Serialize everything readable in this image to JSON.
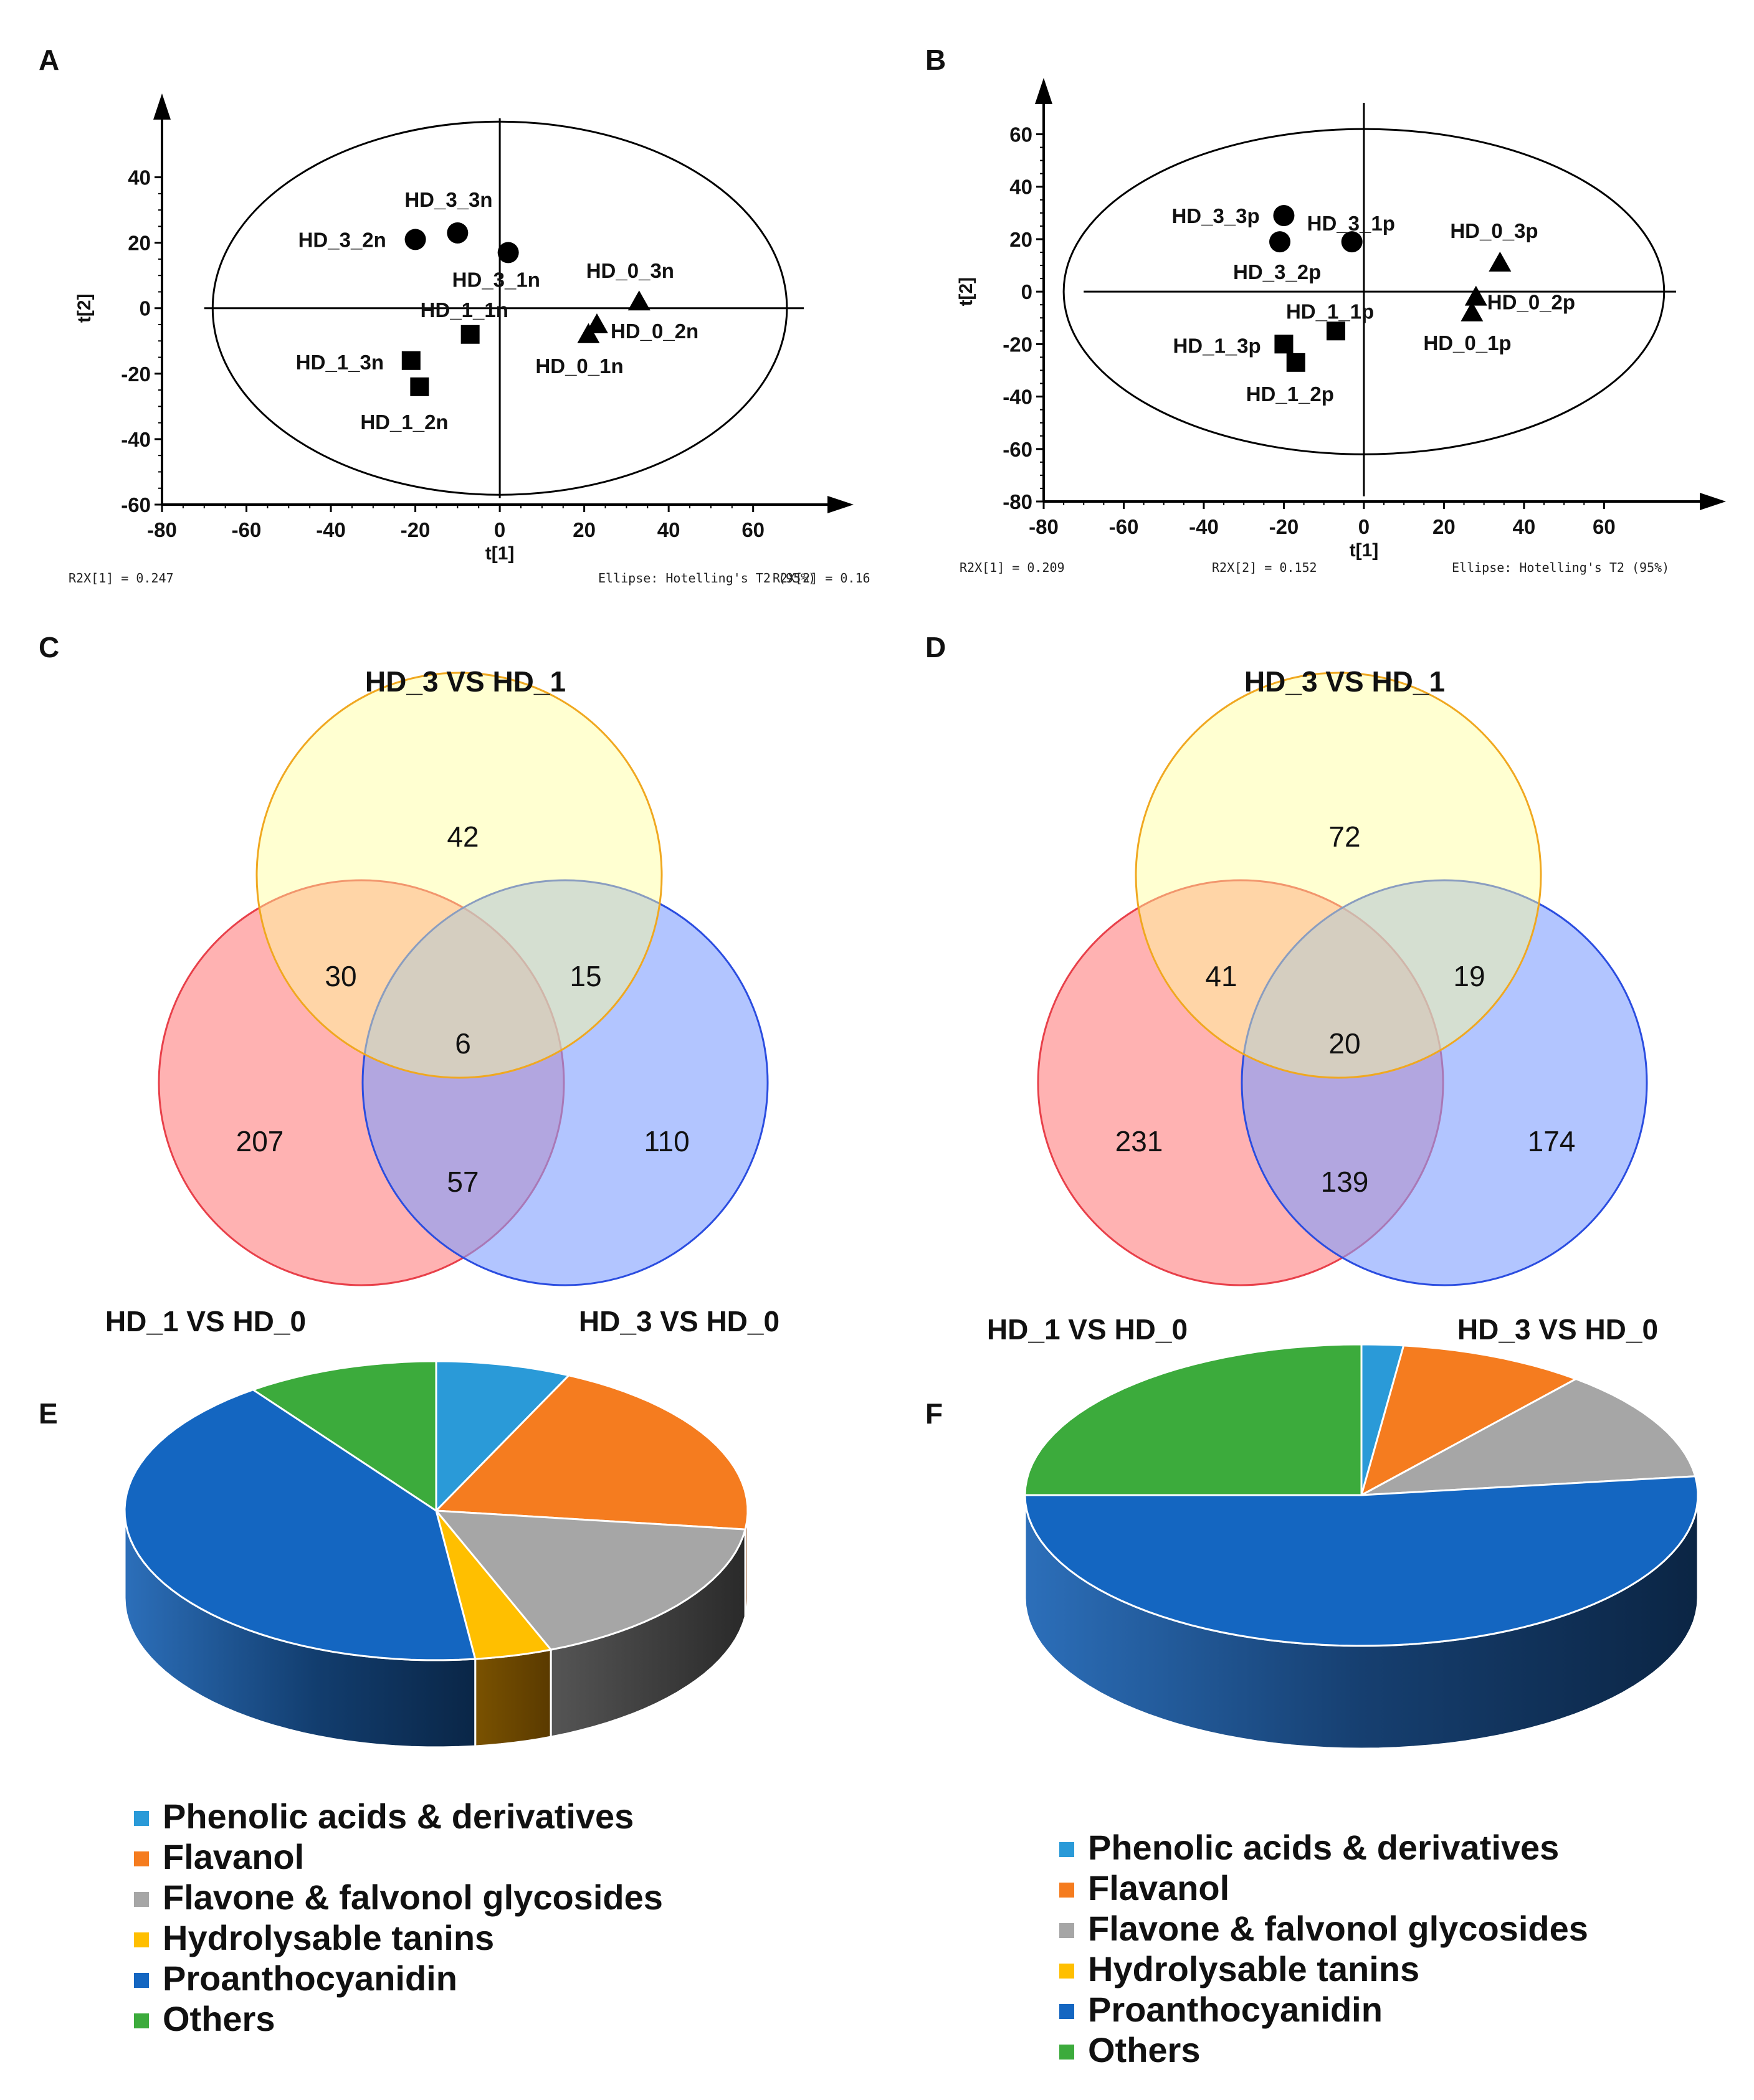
{
  "panel_labels": {
    "A": "A",
    "B": "B",
    "C": "C",
    "D": "D",
    "E": "E",
    "F": "F"
  },
  "chart_data": [
    {
      "panel": "A",
      "type": "scatter",
      "xlabel": "t[1]",
      "ylabel": "t[2]",
      "xticks": [
        -80,
        -60,
        -40,
        -20,
        0,
        20,
        40,
        60
      ],
      "yticks": [
        -60,
        -40,
        -20,
        0,
        20,
        40
      ],
      "xlim": [
        -80,
        72
      ],
      "ylim": [
        -60,
        58
      ],
      "ellipse": {
        "cx": 0,
        "cy": 0,
        "rx": 68,
        "ry": 57
      },
      "points": [
        {
          "label": "HD_3_3n",
          "x": -10,
          "y": 23,
          "shape": "circle"
        },
        {
          "label": "HD_3_2n",
          "x": -20,
          "y": 21,
          "shape": "circle"
        },
        {
          "label": "HD_3_1n",
          "x": 2,
          "y": 17,
          "shape": "circle"
        },
        {
          "label": "HD_0_3n",
          "x": 33,
          "y": 2,
          "shape": "triangle"
        },
        {
          "label": "HD_0_2n",
          "x": 23,
          "y": -5,
          "shape": "triangle"
        },
        {
          "label": "HD_0_1n",
          "x": 21,
          "y": -8,
          "shape": "triangle"
        },
        {
          "label": "HD_1_1n",
          "x": -7,
          "y": -8,
          "shape": "square"
        },
        {
          "label": "HD_1_3n",
          "x": -21,
          "y": -16,
          "shape": "square"
        },
        {
          "label": "HD_1_2n",
          "x": -19,
          "y": -24,
          "shape": "square"
        }
      ],
      "footer": {
        "r2x1": "R2X[1] = 0.247",
        "r2x2": "R2X[2] = 0.16",
        "ellipse": "Ellipse: Hotelling's T2 (95%)"
      }
    },
    {
      "panel": "B",
      "type": "scatter",
      "xlabel": "t[1]",
      "ylabel": "t[2]",
      "xticks": [
        -80,
        -60,
        -40,
        -20,
        0,
        20,
        40,
        60
      ],
      "yticks": [
        -80,
        -60,
        -40,
        -20,
        0,
        20,
        40,
        60
      ],
      "xlim": [
        -80,
        78
      ],
      "ylim": [
        -80,
        72
      ],
      "ellipse": {
        "cx": 0,
        "cy": 0,
        "rx": 75,
        "ry": 62
      },
      "points": [
        {
          "label": "HD_3_3p",
          "x": -20,
          "y": 29,
          "shape": "circle"
        },
        {
          "label": "HD_3_2p",
          "x": -21,
          "y": 19,
          "shape": "circle"
        },
        {
          "label": "HD_3_1p",
          "x": -3,
          "y": 19,
          "shape": "circle"
        },
        {
          "label": "HD_0_3p",
          "x": 34,
          "y": 11,
          "shape": "triangle"
        },
        {
          "label": "HD_0_2p",
          "x": 28,
          "y": -2,
          "shape": "triangle"
        },
        {
          "label": "HD_0_1p",
          "x": 27,
          "y": -8,
          "shape": "triangle"
        },
        {
          "label": "HD_1_1p",
          "x": -7,
          "y": -15,
          "shape": "square"
        },
        {
          "label": "HD_1_3p",
          "x": -20,
          "y": -20,
          "shape": "square"
        },
        {
          "label": "HD_1_2p",
          "x": -17,
          "y": -27,
          "shape": "square"
        }
      ],
      "footer": {
        "r2x1": "R2X[1] = 0.209",
        "r2x2": "R2X[2] = 0.152",
        "ellipse": "Ellipse: Hotelling's T2 (95%)"
      }
    },
    {
      "panel": "C",
      "type": "venn",
      "sets": [
        "HD_3 VS HD_1",
        "HD_1 VS HD_0",
        "HD_3 VS HD_0"
      ],
      "regions": {
        "only_top": 42,
        "only_left": 207,
        "only_right": 110,
        "top_left": 30,
        "top_right": 15,
        "left_right": 57,
        "all": 6
      },
      "colors": {
        "top": "#ffff99",
        "left": "#ff7f7f",
        "right": "#7f9fff"
      }
    },
    {
      "panel": "D",
      "type": "venn",
      "sets": [
        "HD_3 VS HD_1",
        "HD_1 VS HD_0",
        "HD_3 VS HD_0"
      ],
      "regions": {
        "only_top": 72,
        "only_left": 231,
        "only_right": 174,
        "top_left": 41,
        "top_right": 19,
        "left_right": 139,
        "all": 20
      },
      "colors": {
        "top": "#ffff99",
        "left": "#ff7f7f",
        "right": "#7f9fff"
      }
    },
    {
      "panel": "E",
      "type": "pie",
      "categories": [
        "Phenolic acids & derivatives",
        "Flavanol",
        "Flavone & falvonol glycosides",
        "Hydrolysable tanins",
        "Proanthocyanidin",
        "Others"
      ],
      "values": [
        7,
        20,
        17,
        4,
        42,
        10
      ]
    },
    {
      "panel": "F",
      "type": "pie",
      "categories": [
        "Phenolic acids & derivatives",
        "Flavanol",
        "Flavone & falvonol glycosides",
        "Hydrolysable tanins",
        "Proanthocyanidin",
        "Others"
      ],
      "values": [
        2,
        9,
        12,
        0,
        52,
        25
      ]
    }
  ],
  "legend": {
    "items": [
      {
        "label": "Phenolic acids & derivatives",
        "color": "#2a9ad8"
      },
      {
        "label": "Flavanol",
        "color": "#f57c1f"
      },
      {
        "label": "Flavone & falvonol glycosides",
        "color": "#a6a6a6"
      },
      {
        "label": "Hydrolysable tanins",
        "color": "#ffbf00"
      },
      {
        "label": "Proanthocyanidin",
        "color": "#1466c1"
      },
      {
        "label": "Others",
        "color": "#3cab3c"
      }
    ]
  }
}
